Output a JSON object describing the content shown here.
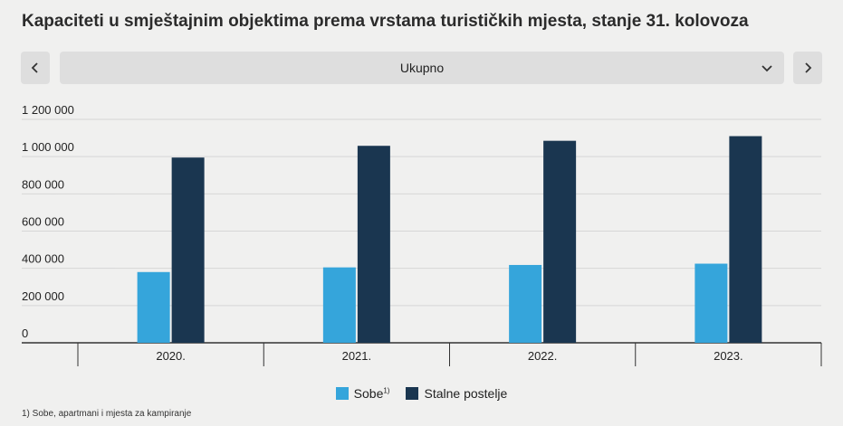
{
  "title": "Kapaciteti u smještajnim objektima prema vrstama turističkih mjesta, stanje 31. kolovoza",
  "controls": {
    "prev_icon": "chevron-left-icon",
    "next_icon": "chevron-right-icon",
    "selected": "Ukupno",
    "dropdown_icon": "chevron-down-icon"
  },
  "chart_data": {
    "type": "bar",
    "categories": [
      "2020.",
      "2021.",
      "2022.",
      "2023."
    ],
    "series": [
      {
        "name": "Sobe",
        "name_sup": "1)",
        "color": "#35a5db",
        "values": [
          380000,
          405000,
          418000,
          425000
        ]
      },
      {
        "name": "Stalne postelje",
        "color": "#1a3650",
        "values": [
          995000,
          1058000,
          1085000,
          1110000
        ]
      }
    ],
    "ylim": [
      0,
      1200000
    ],
    "yticks": [
      0,
      200000,
      400000,
      600000,
      800000,
      1000000,
      1200000
    ],
    "ytick_labels": [
      "0",
      "200 000",
      "400 000",
      "600 000",
      "800 000",
      "1 000 000",
      "1 200 000"
    ],
    "grid": true,
    "legend": "bottom-center"
  },
  "footnote": "1) Sobe, apartmani i mjesta za kampiranje"
}
